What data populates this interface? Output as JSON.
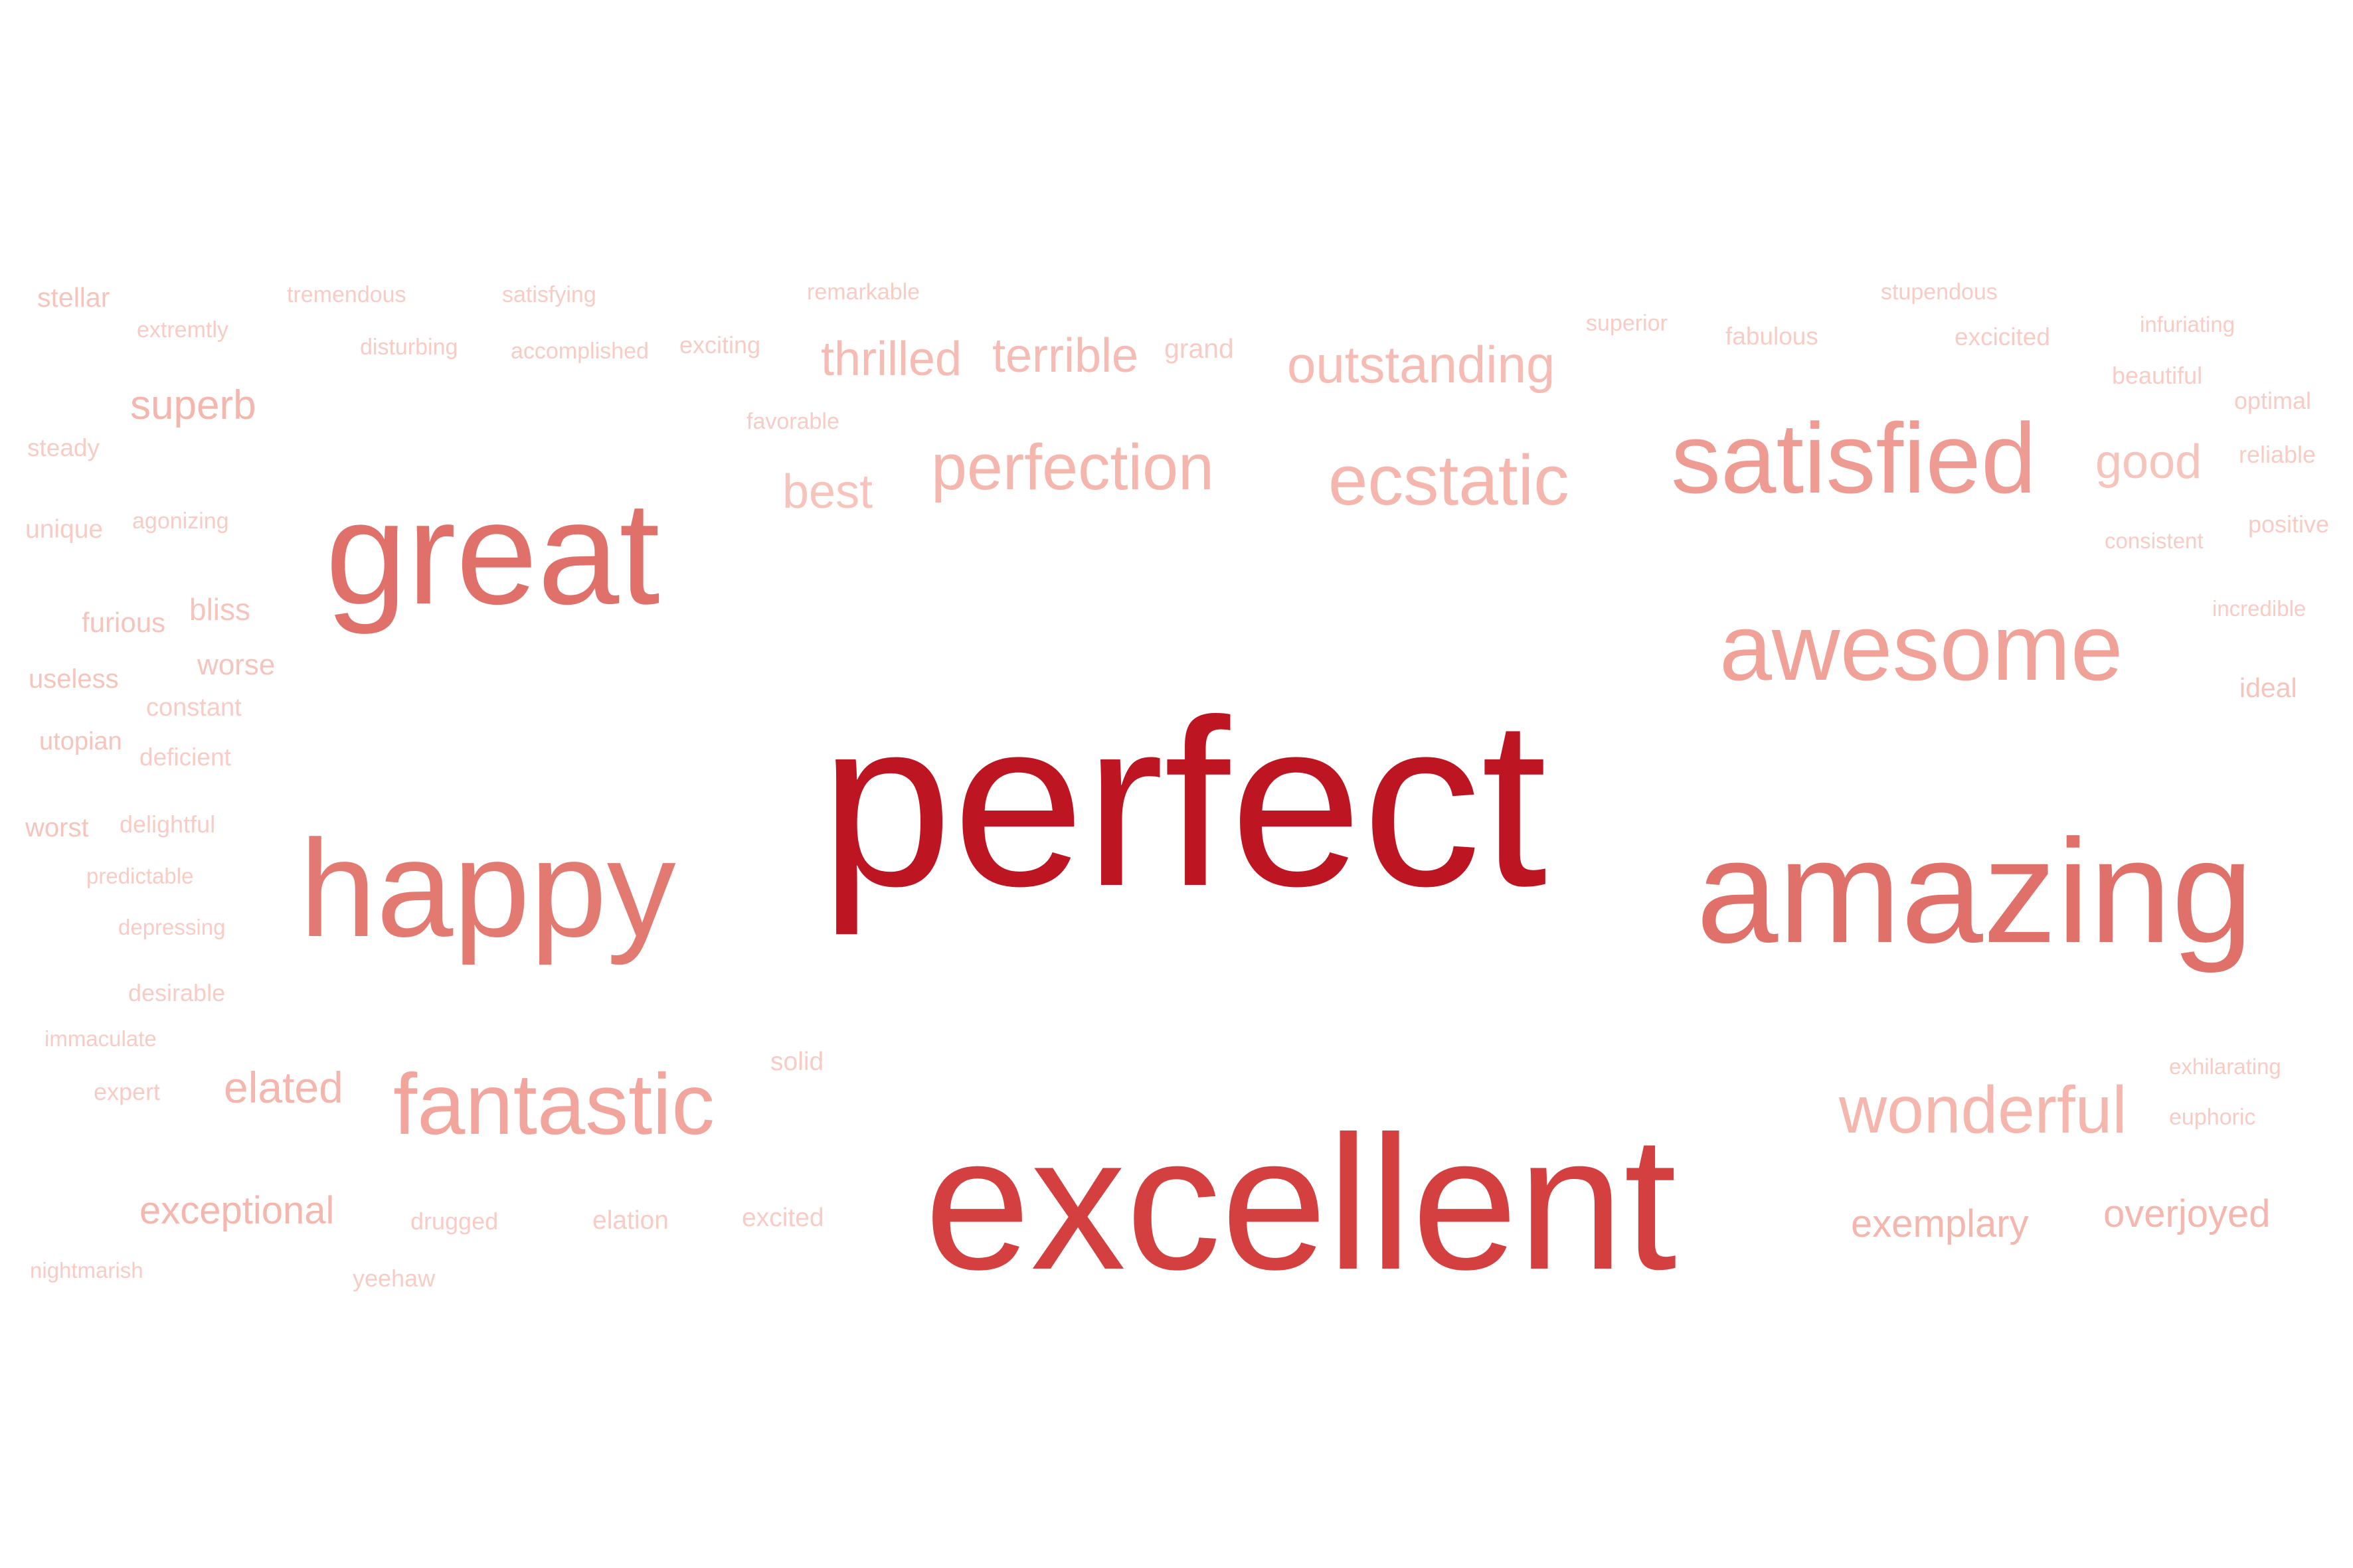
{
  "words": [
    {
      "text": "perfect",
      "weight": 1.0,
      "color": "#bd1522"
    },
    {
      "text": "excellent",
      "weight": 0.8,
      "color": "#d4403f"
    },
    {
      "text": "amazing",
      "weight": 0.62,
      "color": "#e0716a"
    },
    {
      "text": "great",
      "weight": 0.62,
      "color": "#e0716a"
    },
    {
      "text": "happy",
      "weight": 0.58,
      "color": "#e37a72"
    },
    {
      "text": "satisfied",
      "weight": 0.42,
      "color": "#ee9c93"
    },
    {
      "text": "awesome",
      "weight": 0.4,
      "color": "#f0a198"
    },
    {
      "text": "fantastic",
      "weight": 0.37,
      "color": "#f2a59c"
    },
    {
      "text": "wonderful",
      "weight": 0.3,
      "color": "#f5b6ad"
    },
    {
      "text": "ecstatic",
      "weight": 0.3,
      "color": "#f5b6ad"
    },
    {
      "text": "perfection",
      "weight": 0.28,
      "color": "#f5b6ad"
    },
    {
      "text": "outstanding",
      "weight": 0.23,
      "color": "#f6bcb4"
    },
    {
      "text": "thrilled",
      "weight": 0.2,
      "color": "#f6bcb4"
    },
    {
      "text": "terrible",
      "weight": 0.2,
      "color": "#f6bcb4"
    },
    {
      "text": "best",
      "weight": 0.21,
      "color": "#f7c4bc"
    },
    {
      "text": "good",
      "weight": 0.21,
      "color": "#f7c4bc"
    },
    {
      "text": "elated",
      "weight": 0.2,
      "color": "#f5b6ad"
    },
    {
      "text": "superb",
      "weight": 0.18,
      "color": "#f5b6ad"
    },
    {
      "text": "exceptional",
      "weight": 0.17,
      "color": "#f5b6ad"
    },
    {
      "text": "exemplary",
      "weight": 0.17,
      "color": "#f5b6ad"
    },
    {
      "text": "overjoyed",
      "weight": 0.17,
      "color": "#f5b6ad"
    },
    {
      "text": "bliss",
      "weight": 0.13,
      "color": "#f7c4bc"
    },
    {
      "text": "worse",
      "weight": 0.12,
      "color": "#f7c4bc"
    },
    {
      "text": "furious",
      "weight": 0.12,
      "color": "#f7c4bc"
    },
    {
      "text": "stellar",
      "weight": 0.12,
      "color": "#f7c4bc"
    },
    {
      "text": "ideal",
      "weight": 0.12,
      "color": "#f7c4bc"
    },
    {
      "text": "worst",
      "weight": 0.12,
      "color": "#f7c4bc"
    },
    {
      "text": "solid",
      "weight": 0.12,
      "color": "#f8ccc5"
    },
    {
      "text": "grand",
      "weight": 0.12,
      "color": "#f8ccc5"
    },
    {
      "text": "useless",
      "weight": 0.11,
      "color": "#f7c4bc"
    },
    {
      "text": "utopian",
      "weight": 0.11,
      "color": "#f7c4bc"
    },
    {
      "text": "unique",
      "weight": 0.11,
      "color": "#f8ccc5"
    },
    {
      "text": "steady",
      "weight": 0.1,
      "color": "#f8ccc5"
    },
    {
      "text": "constant",
      "weight": 0.11,
      "color": "#f8ccc5"
    },
    {
      "text": "deficient",
      "weight": 0.11,
      "color": "#f8ccc5"
    },
    {
      "text": "delightful",
      "weight": 0.1,
      "color": "#f8ccc5"
    },
    {
      "text": "excited",
      "weight": 0.1,
      "color": "#f8ccc5"
    },
    {
      "text": "elation",
      "weight": 0.11,
      "color": "#f8ccc5"
    },
    {
      "text": "desirable",
      "weight": 0.1,
      "color": "#f8ccc5"
    },
    {
      "text": "expert",
      "weight": 0.1,
      "color": "#f8ccc5"
    },
    {
      "text": "drugged",
      "weight": 0.1,
      "color": "#f8ccc5"
    },
    {
      "text": "yeehaw",
      "weight": 0.1,
      "color": "#f8ccc5"
    },
    {
      "text": "fabulous",
      "weight": 0.11,
      "color": "#f8ccc5"
    },
    {
      "text": "excicited",
      "weight": 0.1,
      "color": "#f8ccc5"
    },
    {
      "text": "beautiful",
      "weight": 0.1,
      "color": "#f8ccc5"
    },
    {
      "text": "optimal",
      "weight": 0.1,
      "color": "#f8ccc5"
    },
    {
      "text": "reliable",
      "weight": 0.1,
      "color": "#f8ccc5"
    },
    {
      "text": "positive",
      "weight": 0.1,
      "color": "#f8ccc5"
    },
    {
      "text": "extremtly",
      "weight": 0.09,
      "color": "#f8ccc5"
    },
    {
      "text": "tremendous",
      "weight": 0.09,
      "color": "#f8ccc5"
    },
    {
      "text": "satisfying",
      "weight": 0.09,
      "color": "#f8ccc5"
    },
    {
      "text": "remarkable",
      "weight": 0.09,
      "color": "#f8ccc5"
    },
    {
      "text": "disturbing",
      "weight": 0.09,
      "color": "#f8ccc5"
    },
    {
      "text": "accomplished",
      "weight": 0.09,
      "color": "#f8ccc5"
    },
    {
      "text": "exciting",
      "weight": 0.1,
      "color": "#f8ccc5"
    },
    {
      "text": "favorable",
      "weight": 0.09,
      "color": "#f8ccc5"
    },
    {
      "text": "superior",
      "weight": 0.09,
      "color": "#f8ccc5"
    },
    {
      "text": "stupendous",
      "weight": 0.09,
      "color": "#f8ccc5"
    },
    {
      "text": "infuriating",
      "weight": 0.09,
      "color": "#f8ccc5"
    },
    {
      "text": "consistent",
      "weight": 0.09,
      "color": "#f8ccc5"
    },
    {
      "text": "incredible",
      "weight": 0.09,
      "color": "#f8ccc5"
    },
    {
      "text": "agonizing",
      "weight": 0.09,
      "color": "#f8ccc5"
    },
    {
      "text": "predictable",
      "weight": 0.09,
      "color": "#f8ccc5"
    },
    {
      "text": "depressing",
      "weight": 0.09,
      "color": "#f8ccc5"
    },
    {
      "text": "immaculate",
      "weight": 0.09,
      "color": "#f8ccc5"
    },
    {
      "text": "nightmarish",
      "weight": 0.09,
      "color": "#f8ccc5"
    },
    {
      "text": "exhilarating",
      "weight": 0.09,
      "color": "#f8ccc5"
    },
    {
      "text": "euphoric",
      "weight": 0.09,
      "color": "#f8ccc5"
    }
  ]
}
